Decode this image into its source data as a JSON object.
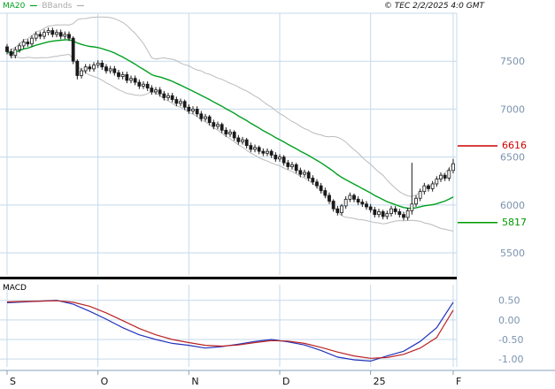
{
  "header": {
    "legend": [
      {
        "label": "MA20",
        "swatch": "—",
        "color": "#00a020"
      },
      {
        "label": "BBands",
        "swatch": "—",
        "color": "#aaaaaa"
      }
    ],
    "copyright": "© TEC 2/2/2025 4:0 GMT"
  },
  "x_axis": {
    "ticks": [
      {
        "label": "S",
        "day": 0
      },
      {
        "label": "O",
        "day": 22
      },
      {
        "label": "N",
        "day": 44
      },
      {
        "label": "D",
        "day": 66
      },
      {
        "label": "25",
        "day": 88
      },
      {
        "label": "F",
        "day": 108
      }
    ],
    "axis_color": "#8aa2b8",
    "label_color": "#111111"
  },
  "grid_color": "#c5d9ea",
  "tick_label_color": "#7b93af",
  "chart_data": [
    {
      "type": "candlestick",
      "title": "Daily price with MA20 and Bollinger Bands (Sep 2024 - Feb 2025)",
      "y_range": [
        5270,
        8000
      ],
      "y_ticks": [
        {
          "value": 7500,
          "label": "7500"
        },
        {
          "value": 7000,
          "label": "7000"
        },
        {
          "value": 6500,
          "label": "6500"
        },
        {
          "value": 6000,
          "label": "6000"
        },
        {
          "value": 5500,
          "label": "5500"
        }
      ],
      "levels": [
        {
          "label": "6616",
          "value": 6616,
          "color": "#cc0000",
          "role": "resistance"
        },
        {
          "label": "5817",
          "value": 5817,
          "color": "#009900",
          "role": "support"
        }
      ],
      "overlays": {
        "ma20_period": 20,
        "bollinger": {
          "period": 20,
          "stddev": 2
        }
      },
      "colors": {
        "candle": "#1a1a1a",
        "ma20": "#00a020",
        "bbands": "#bbbbbb"
      },
      "candles": [
        [
          7650,
          7680,
          7570,
          7600
        ],
        [
          7600,
          7630,
          7530,
          7560
        ],
        [
          7560,
          7650,
          7530,
          7620
        ],
        [
          7620,
          7690,
          7590,
          7660
        ],
        [
          7660,
          7730,
          7630,
          7700
        ],
        [
          7700,
          7730,
          7650,
          7680
        ],
        [
          7680,
          7770,
          7650,
          7740
        ],
        [
          7740,
          7810,
          7710,
          7780
        ],
        [
          7780,
          7810,
          7730,
          7760
        ],
        [
          7760,
          7830,
          7730,
          7800
        ],
        [
          7800,
          7850,
          7770,
          7820
        ],
        [
          7820,
          7850,
          7750,
          7780
        ],
        [
          7780,
          7830,
          7750,
          7800
        ],
        [
          7800,
          7830,
          7730,
          7760
        ],
        [
          7760,
          7810,
          7730,
          7780
        ],
        [
          7780,
          7810,
          7710,
          7740
        ],
        [
          7740,
          7760,
          7470,
          7500
        ],
        [
          7500,
          7520,
          7310,
          7350
        ],
        [
          7350,
          7430,
          7320,
          7400
        ],
        [
          7400,
          7470,
          7370,
          7440
        ],
        [
          7440,
          7470,
          7390,
          7420
        ],
        [
          7420,
          7490,
          7390,
          7460
        ],
        [
          7460,
          7510,
          7430,
          7480
        ],
        [
          7480,
          7510,
          7410,
          7440
        ],
        [
          7440,
          7470,
          7370,
          7400
        ],
        [
          7400,
          7450,
          7370,
          7420
        ],
        [
          7420,
          7450,
          7350,
          7380
        ],
        [
          7380,
          7410,
          7310,
          7340
        ],
        [
          7340,
          7390,
          7310,
          7360
        ],
        [
          7360,
          7390,
          7270,
          7300
        ],
        [
          7300,
          7350,
          7270,
          7320
        ],
        [
          7320,
          7350,
          7250,
          7280
        ],
        [
          7280,
          7310,
          7210,
          7240
        ],
        [
          7240,
          7290,
          7210,
          7260
        ],
        [
          7260,
          7290,
          7190,
          7220
        ],
        [
          7220,
          7250,
          7150,
          7180
        ],
        [
          7180,
          7230,
          7150,
          7200
        ],
        [
          7200,
          7230,
          7130,
          7160
        ],
        [
          7160,
          7190,
          7090,
          7120
        ],
        [
          7120,
          7170,
          7090,
          7140
        ],
        [
          7140,
          7170,
          7070,
          7100
        ],
        [
          7100,
          7130,
          7030,
          7060
        ],
        [
          7060,
          7110,
          7030,
          7080
        ],
        [
          7080,
          7100,
          6990,
          7020
        ],
        [
          7020,
          7050,
          6950,
          6980
        ],
        [
          6980,
          7030,
          6950,
          7000
        ],
        [
          7000,
          7030,
          6920,
          6950
        ],
        [
          6950,
          6980,
          6870,
          6900
        ],
        [
          6900,
          6950,
          6870,
          6920
        ],
        [
          6920,
          6940,
          6830,
          6860
        ],
        [
          6860,
          6890,
          6790,
          6820
        ],
        [
          6820,
          6870,
          6790,
          6840
        ],
        [
          6840,
          6860,
          6750,
          6780
        ],
        [
          6780,
          6810,
          6710,
          6740
        ],
        [
          6740,
          6790,
          6710,
          6760
        ],
        [
          6760,
          6780,
          6670,
          6700
        ],
        [
          6700,
          6730,
          6630,
          6660
        ],
        [
          6660,
          6710,
          6630,
          6680
        ],
        [
          6680,
          6700,
          6590,
          6620
        ],
        [
          6620,
          6650,
          6550,
          6580
        ],
        [
          6580,
          6630,
          6550,
          6600
        ],
        [
          6600,
          6620,
          6530,
          6560
        ],
        [
          6560,
          6590,
          6510,
          6540
        ],
        [
          6540,
          6590,
          6510,
          6560
        ],
        [
          6560,
          6580,
          6490,
          6520
        ],
        [
          6520,
          6550,
          6450,
          6480
        ],
        [
          6480,
          6530,
          6450,
          6500
        ],
        [
          6500,
          6520,
          6410,
          6440
        ],
        [
          6440,
          6470,
          6370,
          6400
        ],
        [
          6400,
          6450,
          6370,
          6420
        ],
        [
          6420,
          6440,
          6330,
          6360
        ],
        [
          6360,
          6390,
          6290,
          6320
        ],
        [
          6320,
          6370,
          6290,
          6340
        ],
        [
          6340,
          6360,
          6250,
          6280
        ],
        [
          6280,
          6310,
          6210,
          6240
        ],
        [
          6240,
          6270,
          6170,
          6200
        ],
        [
          6200,
          6230,
          6120,
          6150
        ],
        [
          6150,
          6180,
          6070,
          6100
        ],
        [
          6100,
          6130,
          6010,
          6040
        ],
        [
          6040,
          6060,
          5930,
          5960
        ],
        [
          5960,
          5990,
          5890,
          5920
        ],
        [
          5920,
          6010,
          5890,
          5990
        ],
        [
          5990,
          6090,
          5960,
          6060
        ],
        [
          6060,
          6130,
          6030,
          6100
        ],
        [
          6100,
          6120,
          6030,
          6060
        ],
        [
          6060,
          6090,
          6000,
          6030
        ],
        [
          6030,
          6060,
          5980,
          6010
        ],
        [
          6010,
          6040,
          5950,
          5980
        ],
        [
          5980,
          6010,
          5920,
          5950
        ],
        [
          5950,
          5980,
          5870,
          5900
        ],
        [
          5900,
          5960,
          5870,
          5930
        ],
        [
          5930,
          5950,
          5850,
          5880
        ],
        [
          5880,
          5940,
          5850,
          5910
        ],
        [
          5910,
          5990,
          5880,
          5960
        ],
        [
          5960,
          5990,
          5900,
          5930
        ],
        [
          5930,
          5960,
          5870,
          5900
        ],
        [
          5900,
          5930,
          5840,
          5870
        ],
        [
          5870,
          5970,
          5840,
          5940
        ],
        [
          5940,
          6440,
          5900,
          6010
        ],
        [
          6010,
          6100,
          5980,
          6070
        ],
        [
          6070,
          6170,
          6040,
          6140
        ],
        [
          6140,
          6230,
          6110,
          6200
        ],
        [
          6200,
          6220,
          6140,
          6170
        ],
        [
          6170,
          6250,
          6140,
          6220
        ],
        [
          6220,
          6300,
          6190,
          6270
        ],
        [
          6270,
          6340,
          6240,
          6310
        ],
        [
          6310,
          6330,
          6250,
          6280
        ],
        [
          6280,
          6390,
          6250,
          6360
        ],
        [
          6360,
          6480,
          6330,
          6430
        ]
      ]
    },
    {
      "type": "line",
      "label": "MACD",
      "y_range": [
        -1.2,
        0.9
      ],
      "y_ticks": [
        {
          "value": 0.5,
          "label": "0.50"
        },
        {
          "value": 0.0,
          "label": "0.00"
        },
        {
          "value": -0.5,
          "label": "-0.50"
        },
        {
          "value": -1.0,
          "label": "-1.00"
        }
      ],
      "x_days": [
        0,
        4,
        8,
        12,
        16,
        20,
        24,
        28,
        32,
        36,
        40,
        44,
        48,
        52,
        56,
        60,
        64,
        68,
        72,
        76,
        80,
        84,
        88,
        92,
        96,
        100,
        104,
        108
      ],
      "series": [
        {
          "name": "macd",
          "color": "#2233bb",
          "values": [
            0.44,
            0.46,
            0.48,
            0.5,
            0.4,
            0.22,
            0.02,
            -0.2,
            -0.38,
            -0.5,
            -0.6,
            -0.65,
            -0.72,
            -0.68,
            -0.62,
            -0.55,
            -0.5,
            -0.56,
            -0.64,
            -0.78,
            -0.95,
            -1.02,
            -1.05,
            -0.92,
            -0.8,
            -0.55,
            -0.2,
            0.45
          ]
        },
        {
          "name": "signal",
          "color": "#bb2222",
          "values": [
            0.46,
            0.47,
            0.48,
            0.49,
            0.45,
            0.35,
            0.18,
            -0.02,
            -0.22,
            -0.38,
            -0.5,
            -0.58,
            -0.65,
            -0.67,
            -0.64,
            -0.58,
            -0.53,
            -0.54,
            -0.6,
            -0.7,
            -0.82,
            -0.92,
            -0.98,
            -0.96,
            -0.88,
            -0.72,
            -0.45,
            0.25
          ]
        }
      ]
    }
  ]
}
